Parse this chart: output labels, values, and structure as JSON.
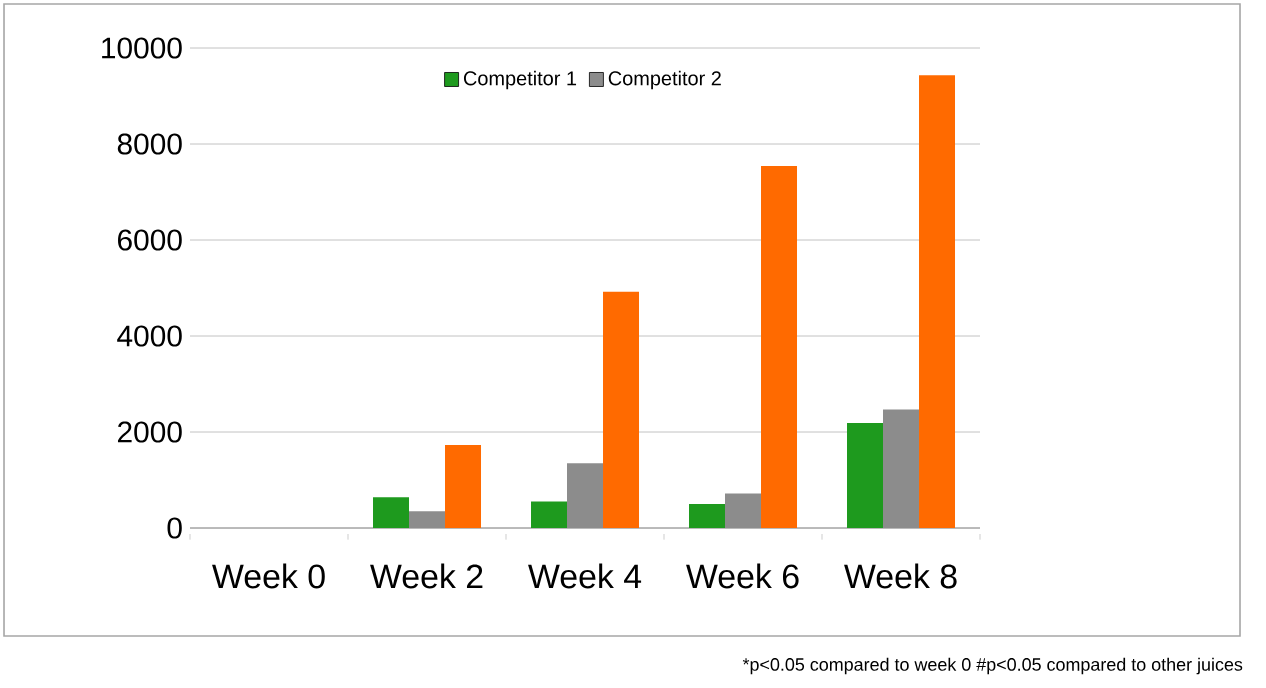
{
  "chart_data": {
    "type": "bar",
    "categories": [
      "Week 0",
      "Week 2",
      "Week 4",
      "Week 6",
      "Week 8"
    ],
    "series": [
      {
        "name": "Competitor 1",
        "color": "#1e9a1e",
        "values": [
          0,
          640,
          550,
          500,
          2190
        ]
      },
      {
        "name": "Competitor 2",
        "color": "#8c8c8c",
        "values": [
          0,
          350,
          1350,
          720,
          2470
        ]
      },
      {
        "color": "#ff6a00",
        "values": [
          0,
          1730,
          4920,
          7540,
          9430
        ]
      }
    ],
    "ylim": [
      0,
      10000
    ],
    "yticks": [
      0,
      2000,
      4000,
      6000,
      8000,
      10000
    ],
    "grid": "y",
    "legend": "top",
    "annotations": [
      "*p<0.05 compared to week 0    #p<0.05 compared to other juices"
    ]
  }
}
